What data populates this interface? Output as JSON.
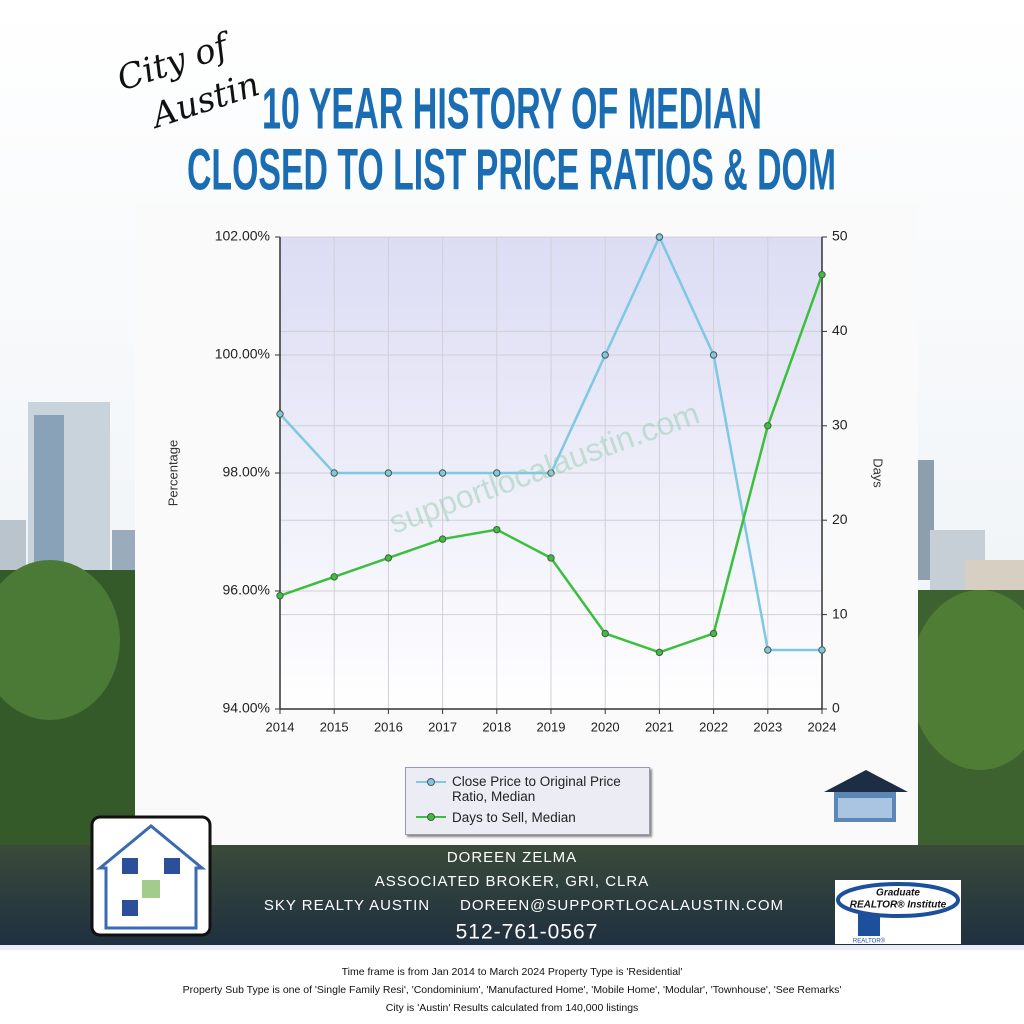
{
  "header": {
    "script": [
      "City of",
      "Austin"
    ],
    "title": [
      "10 YEAR HISTORY OF MEDIAN",
      "CLOSED TO LIST PRICE RATIOS & DOM"
    ]
  },
  "chart_data": {
    "type": "line",
    "x": [
      2014,
      2015,
      2016,
      2017,
      2018,
      2019,
      2020,
      2021,
      2022,
      2023,
      2024
    ],
    "xlim": [
      2014,
      2024
    ],
    "xticks": [
      2014,
      2015,
      2016,
      2017,
      2018,
      2019,
      2020,
      2021,
      2022,
      2023,
      2024
    ],
    "ylabel": "Percentage",
    "y2label": "Days",
    "ylim": [
      94,
      102
    ],
    "yticks": [
      {
        "value": 94,
        "label": "94.00%"
      },
      {
        "value": 96,
        "label": "96.00%"
      },
      {
        "value": 98,
        "label": "98.00%"
      },
      {
        "value": 100,
        "label": "100.00%"
      },
      {
        "value": 102,
        "label": "102.00%"
      }
    ],
    "y2lim": [
      0,
      50
    ],
    "y2ticks": [
      0,
      10,
      20,
      30,
      40,
      50
    ],
    "grid": true,
    "watermark": "supportlocalaustin.com",
    "series": [
      {
        "name": "Close Price to Original Price Ratio, Median",
        "color": "#7ec8e3",
        "values": [
          99,
          98,
          98,
          98,
          98,
          98,
          100,
          102,
          100,
          95,
          95
        ]
      },
      {
        "name": "Days to Sell, Median",
        "color": "#3cbf3c",
        "axis": "y2",
        "values": [
          12,
          14,
          16,
          18,
          19,
          16,
          8,
          6,
          8,
          30,
          46
        ]
      }
    ]
  },
  "contact": {
    "name": "DOREEN ZELMA",
    "role": "ASSOCIATED BROKER, GRI, CLRA",
    "company": "SKY REALTY AUSTIN",
    "email": "DOREEN@SUPPORTLOCALAUSTIN.COM",
    "phone": "512-761-0567"
  },
  "logo": {
    "top": "Graduate",
    "middle": "REALTOR® Institute",
    "bottom": "REALTOR®"
  },
  "footer": [
    "Time frame is from Jan 2014 to March 2024 Property Type is 'Residential'",
    "Property Sub Type is one of 'Single Family Resi', 'Condominium', 'Manufactured Home', 'Mobile Home', 'Modular', 'Townhouse', 'See Remarks'",
    "City is 'Austin' Results calculated from 140,000 listings"
  ]
}
